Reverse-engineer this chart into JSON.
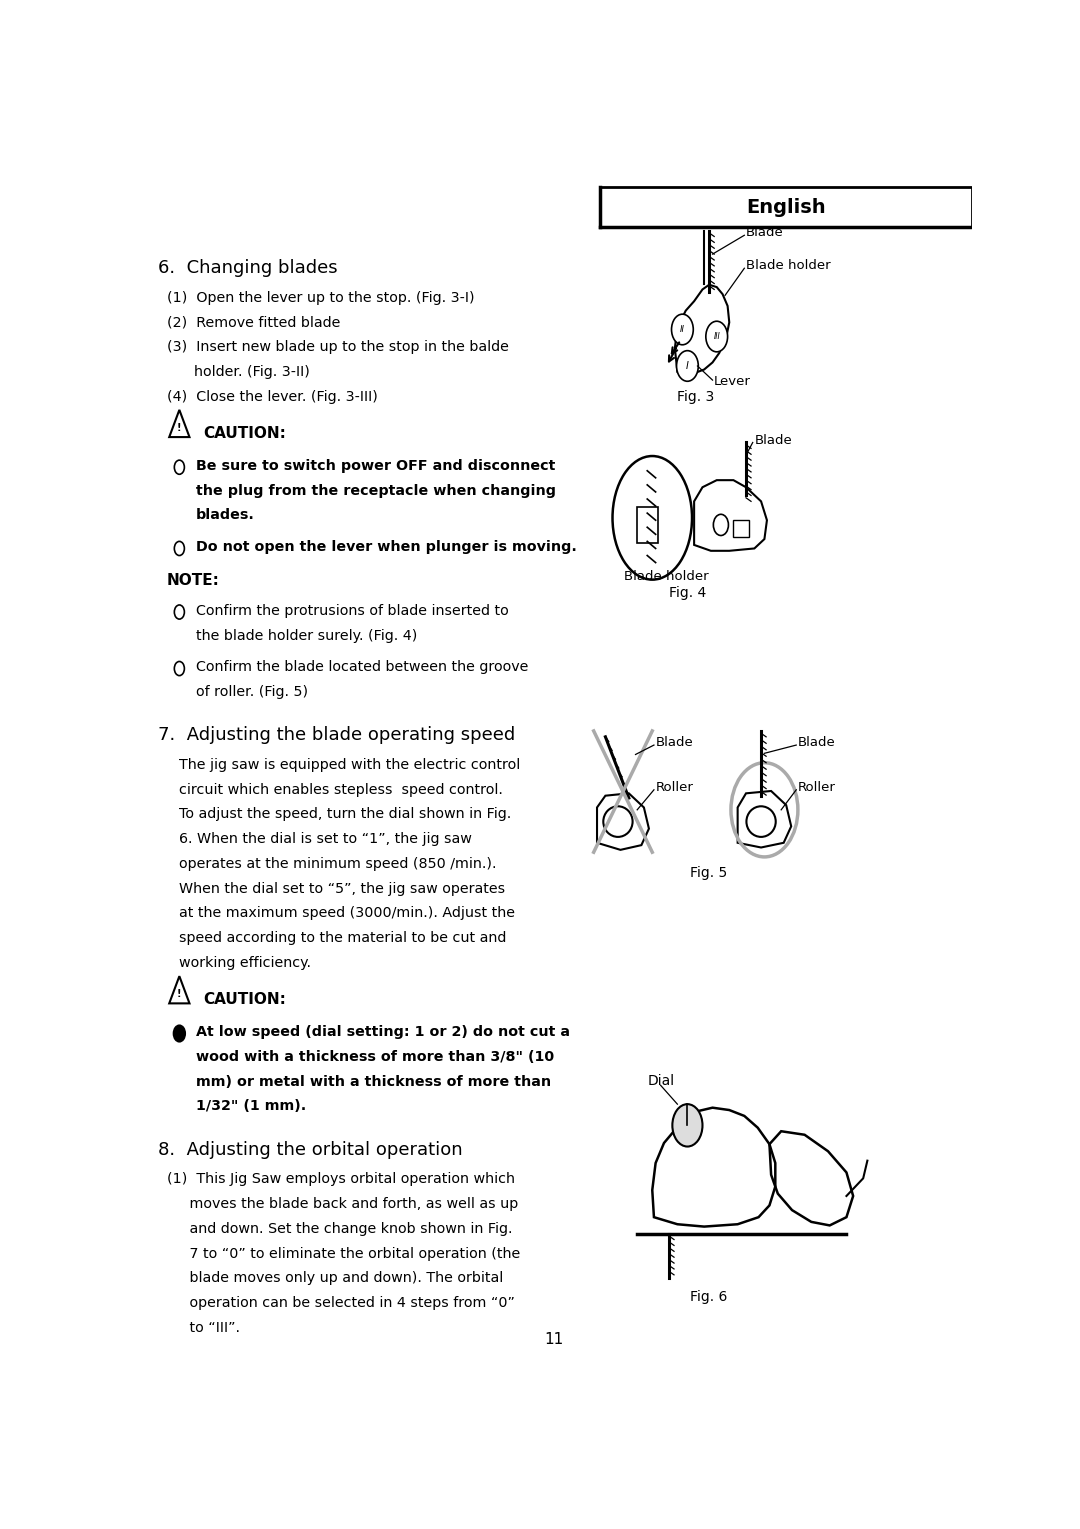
{
  "page_number": "11",
  "header_text": "English",
  "background_color": "#ffffff",
  "text_color": "#000000",
  "section6_title": "6.  Changing blades",
  "section6_items": [
    "(1)  Open the lever up to the stop. (Fig. 3-I)",
    "(2)  Remove fitted blade",
    "(3)  Insert new blade up to the stop in the balde",
    "      holder. (Fig. 3-II)",
    "(4)  Close the lever. (Fig. 3-III)"
  ],
  "caution1_bullets": [
    "Be sure to switch power OFF and disconnect",
    "the plug from the receptacle when changing",
    "blades."
  ],
  "caution1_bullet2": "Do not open the lever when plunger is moving.",
  "note_bullet1": [
    "Confirm the protrusions of blade inserted to",
    "the blade holder surely. (Fig. 4)"
  ],
  "note_bullet2": [
    "Confirm the blade located between the groove",
    "of roller. (Fig. 5)"
  ],
  "section7_title": "7.  Adjusting the blade operating speed",
  "section7_body": [
    "The jig saw is equipped with the electric control",
    "circuit which enables stepless  speed control.",
    "To adjust the speed, turn the dial shown in Fig.",
    "6. When the dial is set to “1”, the jig saw",
    "operates at the minimum speed (850 /min.).",
    "When the dial set to “5”, the jig saw operates",
    "at the maximum speed (3000/min.). Adjust the",
    "speed according to the material to be cut and",
    "working efficiency."
  ],
  "caution2_bullet": [
    "At low speed (dial setting: 1 or 2) do not cut a",
    "wood with a thickness of more than 3/8\" (10",
    "mm) or metal with a thickness of more than",
    "1/32\" (1 mm)."
  ],
  "section8_title": "8.  Adjusting the orbital operation",
  "section8_items": [
    "(1)  This Jig Saw employs orbital operation which",
    "     moves the blade back and forth, as well as up",
    "     and down. Set the change knob shown in Fig.",
    "     7 to “0” to eliminate the orbital operation (the",
    "     blade moves only up and down). The orbital",
    "     operation can be selected in 4 steps from “0”",
    "     to “III”."
  ],
  "fig3_label": "Fig. 3",
  "fig4_label": "Fig. 4",
  "fig5_label": "Fig. 5",
  "fig6_label": "Fig. 6",
  "fig3_annotations": [
    "Blade",
    "Blade holder",
    "Lever"
  ],
  "fig4_annotations": [
    "Blade",
    "Blade holder"
  ],
  "fig5_annotations": [
    "Blade",
    "Roller",
    "Blade",
    "Roller"
  ],
  "fig6_annotations": [
    "Dial"
  ]
}
